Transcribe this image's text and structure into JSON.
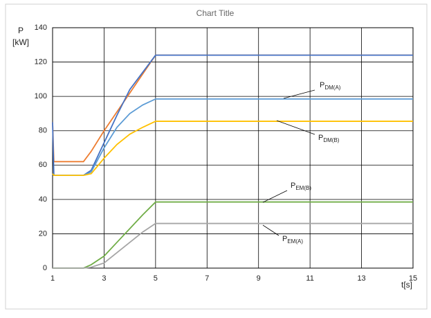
{
  "chart_data": {
    "type": "line",
    "title": "Chart Title",
    "y_label": [
      "P",
      "[kW]"
    ],
    "x_label": "t[s]",
    "x": [
      1,
      1.05,
      2.2,
      2.5,
      3,
      3.5,
      4,
      4.5,
      5,
      15
    ],
    "series": [
      {
        "color": "#ed7d31",
        "values": [
          85,
          62,
          62,
          68,
          80,
          91,
          102,
          113,
          124,
          124
        ]
      },
      {
        "color": "#4472c4",
        "values": [
          85,
          54,
          54,
          57,
          73,
          89,
          104,
          114,
          124,
          124
        ]
      },
      {
        "color": "#5b9bd5",
        "values": [
          55,
          54,
          54,
          56,
          70,
          82,
          90,
          95,
          98.5,
          98.5
        ]
      },
      {
        "color": "#ffc000",
        "values": [
          55,
          54,
          54,
          55,
          64,
          72,
          78,
          82,
          85.5,
          85.5
        ]
      },
      {
        "color": "#70ad47",
        "values": [
          0,
          0,
          0,
          2,
          7,
          15,
          23,
          31,
          38.5,
          38.5
        ]
      },
      {
        "color": "#a5a5a5",
        "values": [
          0,
          0,
          0,
          0.5,
          3,
          9,
          15,
          21,
          26,
          26
        ]
      }
    ],
    "annotations": [
      {
        "text": "P",
        "sub": "DM(A)"
      },
      {
        "text": "P",
        "sub": "DM(B)"
      },
      {
        "text": "P",
        "sub": "EM(B)"
      },
      {
        "text": "P",
        "sub": "EM(A)"
      }
    ],
    "xlim": [
      1,
      15
    ],
    "xticks": [
      1,
      3,
      5,
      7,
      9,
      11,
      13,
      15
    ],
    "ylim": [
      0,
      140
    ],
    "yticks": [
      0,
      20,
      40,
      60,
      80,
      100,
      120,
      140
    ],
    "grid": true
  }
}
